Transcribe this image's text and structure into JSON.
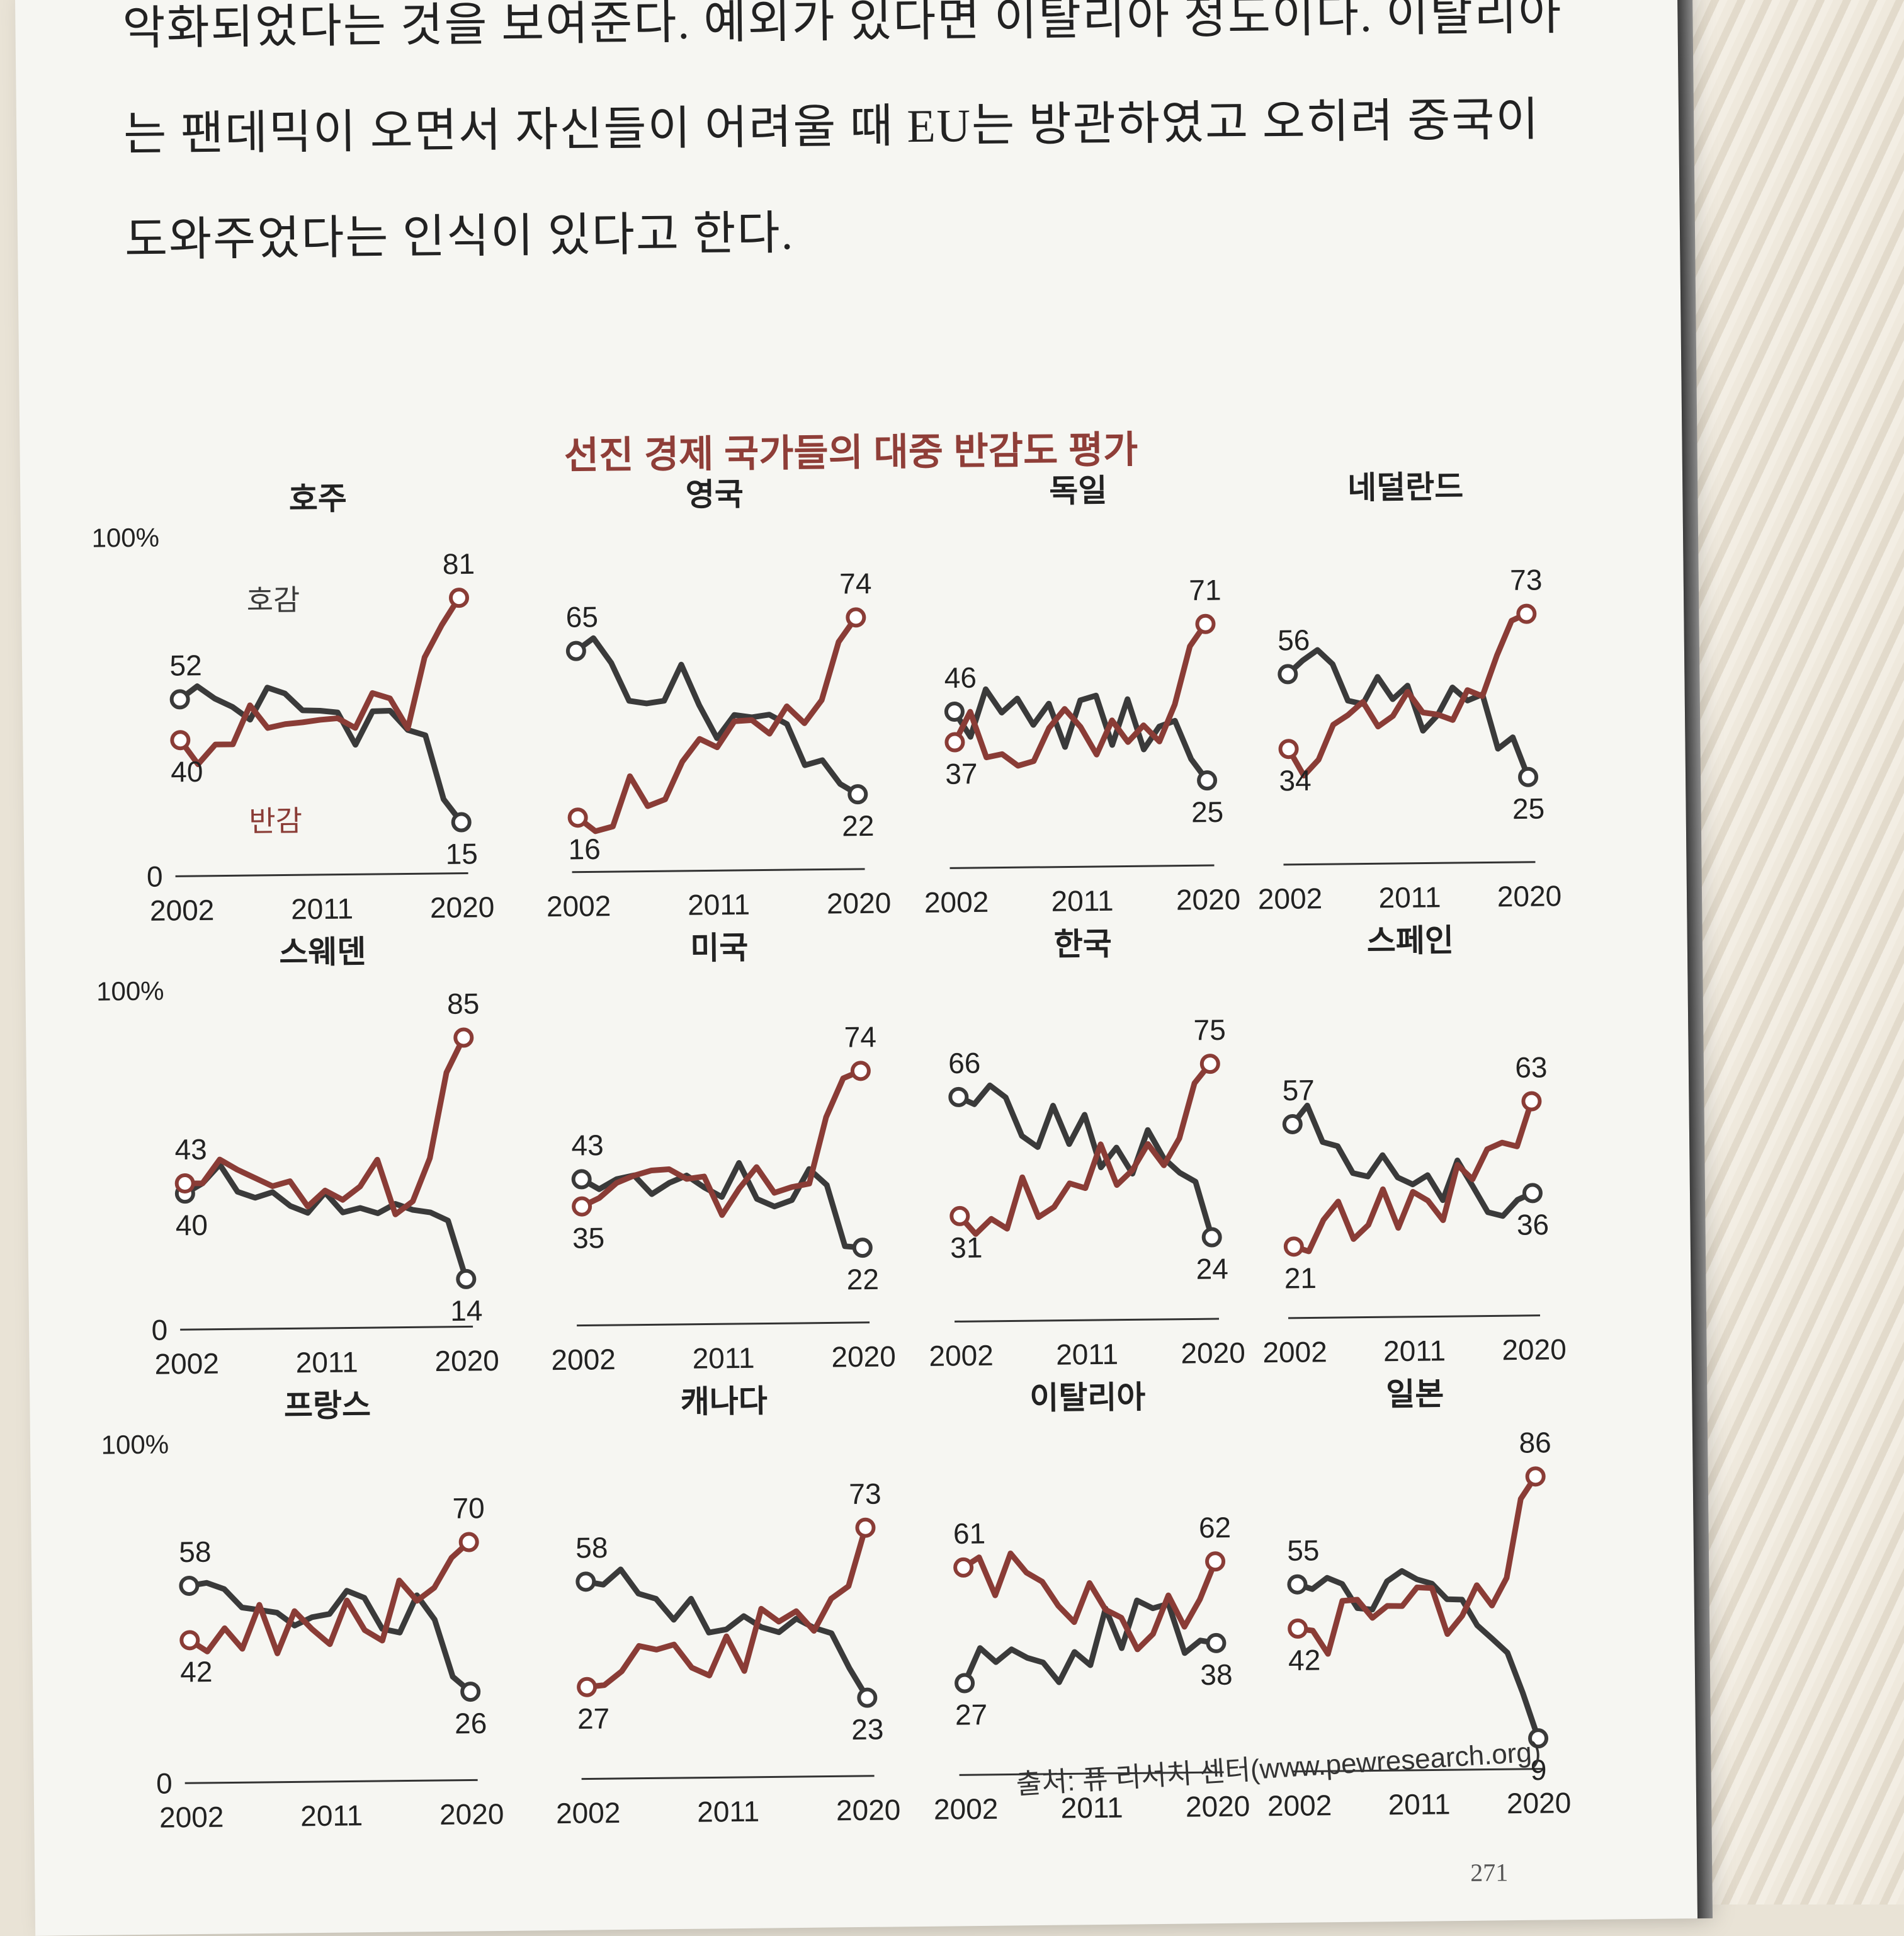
{
  "paragraph": {
    "line1": "악화되었다는 것을 보여준다. 예외가 있다면 이탈리아 정도이다. 이탈리아",
    "line2": "는 팬데믹이 오면서 자신들이 어려울 때 EU는 방관하였고 오히려 중국이",
    "line3": "도와주었다는 인식이 있다고 한다."
  },
  "figure": {
    "title": "선진 경제 국가들의 대중 반감도 평가",
    "source": "출처: 퓨 리서치 센터(www.pewresearch.org)"
  },
  "page_number": "271",
  "colors": {
    "favorable": "#3a3a3a",
    "unfavorable": "#8a3c36"
  },
  "chart_data": [
    {
      "type": "line",
      "title": "호주",
      "x_ticks": [
        "2002",
        "2011",
        "2020"
      ],
      "y_ticks": [
        "0",
        "100%"
      ],
      "series": [
        {
          "name": "호감",
          "start": 52,
          "end": 15
        },
        {
          "name": "반감",
          "start": 40,
          "end": 81
        }
      ]
    },
    {
      "type": "line",
      "title": "영국",
      "x_ticks": [
        "2002",
        "2011",
        "2020"
      ],
      "series": [
        {
          "start": 65,
          "end": 22
        },
        {
          "start": 16,
          "end": 74
        }
      ]
    },
    {
      "type": "line",
      "title": "독일",
      "x_ticks": [
        "2002",
        "2011",
        "2020"
      ],
      "series": [
        {
          "start": 46,
          "end": 25
        },
        {
          "start": 37,
          "end": 71
        }
      ]
    },
    {
      "type": "line",
      "title": "네덜란드",
      "x_ticks": [
        "2002",
        "2011",
        "2020"
      ],
      "series": [
        {
          "start": 56,
          "end": 25
        },
        {
          "start": 34,
          "end": 73
        }
      ]
    },
    {
      "type": "line",
      "title": "스웨덴",
      "x_ticks": [
        "2002",
        "2011",
        "2020"
      ],
      "y_ticks": [
        "0",
        "100%"
      ],
      "series": [
        {
          "start": 40,
          "end": 14
        },
        {
          "start": 43,
          "end": 85
        }
      ]
    },
    {
      "type": "line",
      "title": "미국",
      "x_ticks": [
        "2002",
        "2011",
        "2020"
      ],
      "series": [
        {
          "start": 43,
          "end": 22
        },
        {
          "start": 35,
          "end": 74
        }
      ]
    },
    {
      "type": "line",
      "title": "한국",
      "x_ticks": [
        "2002",
        "2011",
        "2020"
      ],
      "series": [
        {
          "start": 66,
          "end": 24
        },
        {
          "start": 31,
          "end": 75
        }
      ]
    },
    {
      "type": "line",
      "title": "스페인",
      "x_ticks": [
        "2002",
        "2011",
        "2020"
      ],
      "series": [
        {
          "start": 57,
          "end": 36
        },
        {
          "start": 21,
          "end": 63
        }
      ]
    },
    {
      "type": "line",
      "title": "프랑스",
      "x_ticks": [
        "2002",
        "2011",
        "2020"
      ],
      "y_ticks": [
        "0",
        "100%"
      ],
      "series": [
        {
          "start": 58,
          "end": 26
        },
        {
          "start": 42,
          "end": 70
        }
      ]
    },
    {
      "type": "line",
      "title": "캐나다",
      "x_ticks": [
        "2002",
        "2011",
        "2020"
      ],
      "series": [
        {
          "start": 58,
          "end": 23
        },
        {
          "start": 27,
          "end": 73
        }
      ]
    },
    {
      "type": "line",
      "title": "이탈리아",
      "x_ticks": [
        "2002",
        "2011",
        "2020"
      ],
      "series": [
        {
          "start": 27,
          "end": 38
        },
        {
          "start": 61,
          "end": 62
        }
      ]
    },
    {
      "type": "line",
      "title": "일본",
      "x_ticks": [
        "2002",
        "2011",
        "2020"
      ],
      "series": [
        {
          "start": 55,
          "end": 9
        },
        {
          "start": 42,
          "end": 86
        }
      ]
    }
  ]
}
